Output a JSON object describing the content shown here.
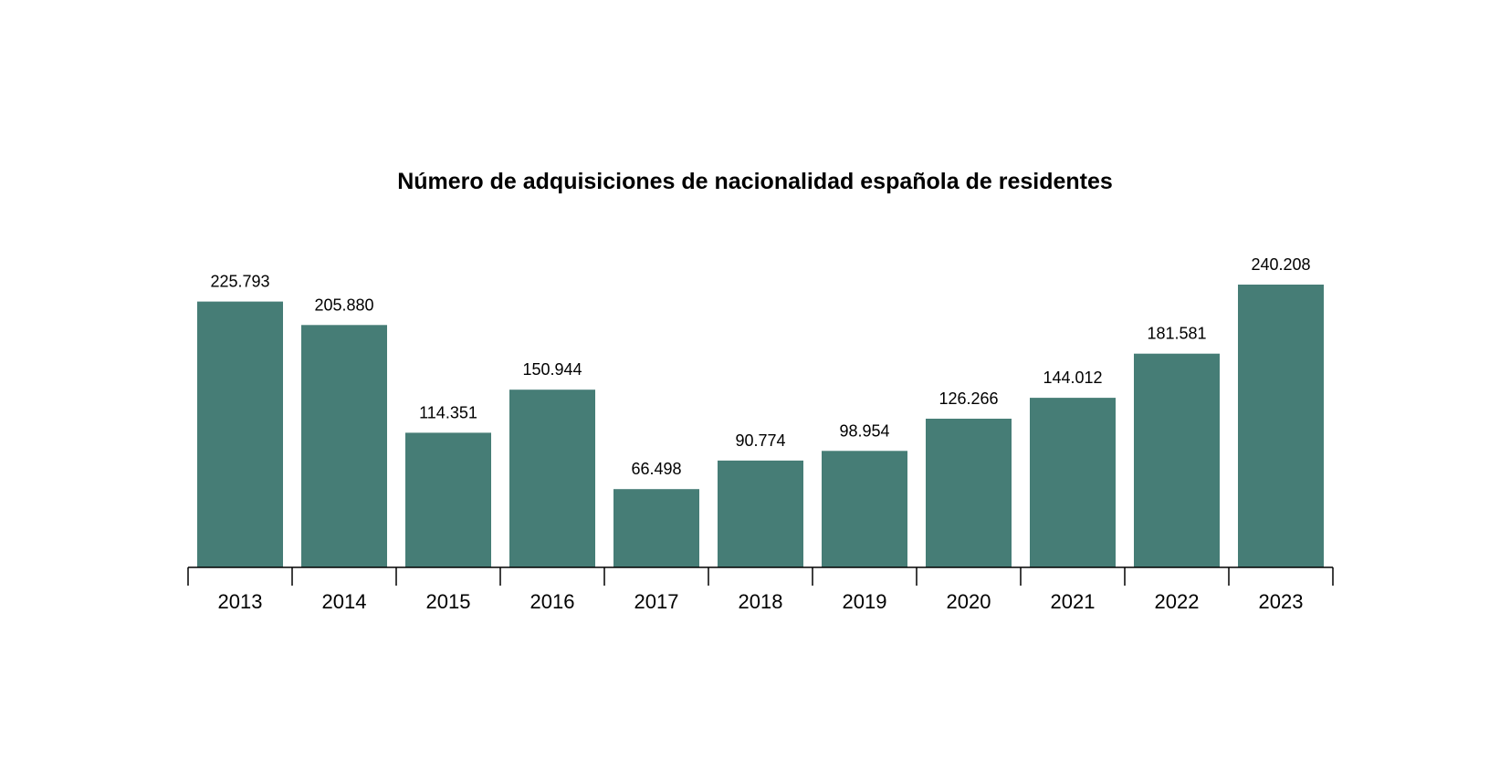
{
  "chart_data": {
    "type": "bar",
    "title": "Número de adquisiciones de nacionalidad española de residentes",
    "xlabel": "",
    "ylabel": "",
    "categories": [
      "2013",
      "2014",
      "2015",
      "2016",
      "2017",
      "2018",
      "2019",
      "2020",
      "2021",
      "2022",
      "2023"
    ],
    "values": [
      225793,
      205880,
      114351,
      150944,
      66498,
      90774,
      98954,
      126266,
      144012,
      181581,
      240208
    ],
    "value_labels": [
      "225.793",
      "205.880",
      "114.351",
      "150.944",
      "66.498",
      "90.774",
      "98.954",
      "126.266",
      "144.012",
      "181.581",
      "240.208"
    ],
    "ylim": [
      0,
      240208
    ],
    "grid": false,
    "legend": "none",
    "colors": {
      "bar": "#467d76",
      "axis": "#000000",
      "text": "#000000"
    }
  }
}
